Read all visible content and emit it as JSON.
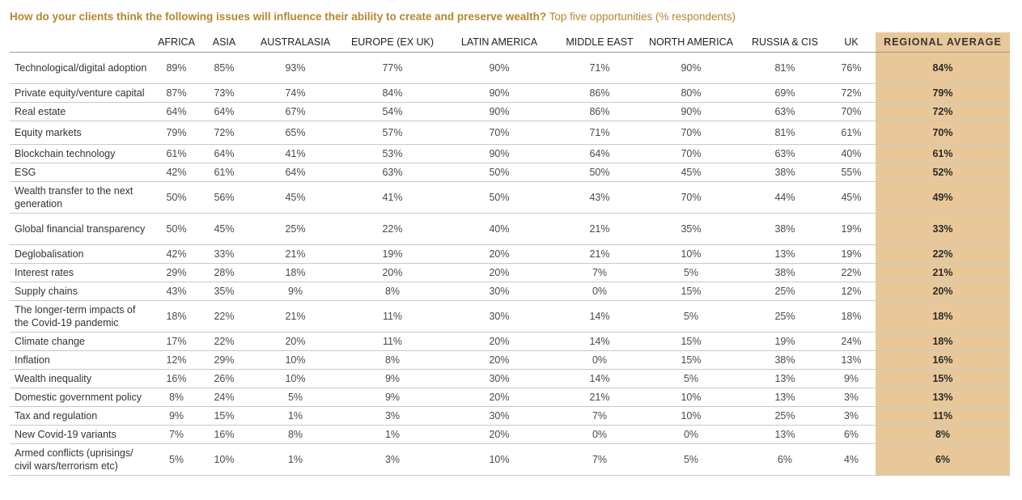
{
  "title": {
    "question": "How do your clients think the following issues will influence their ability to create and preserve wealth?",
    "subtitle": "Top five opportunities (% respondents)"
  },
  "chart_data": {
    "type": "table",
    "columns": [
      "AFRICA",
      "ASIA",
      "AUSTRALASIA",
      "EUROPE (EX UK)",
      "LATIN AMERICA",
      "MIDDLE EAST",
      "NORTH AMERICA",
      "RUSSIA & CIS",
      "UK",
      "REGIONAL AVERAGE"
    ],
    "highlight_color": "#e8c899",
    "rows": [
      {
        "label": "Technological/digital adoption",
        "values": [
          "89%",
          "85%",
          "93%",
          "77%",
          "90%",
          "71%",
          "90%",
          "81%",
          "76%",
          "84%"
        ]
      },
      {
        "label": "Private equity/venture capital",
        "values": [
          "87%",
          "73%",
          "74%",
          "84%",
          "90%",
          "86%",
          "80%",
          "69%",
          "72%",
          "79%"
        ]
      },
      {
        "label": "Real estate",
        "values": [
          "64%",
          "64%",
          "67%",
          "54%",
          "90%",
          "86%",
          "90%",
          "63%",
          "70%",
          "72%"
        ]
      },
      {
        "label": "Equity markets",
        "values": [
          "79%",
          "72%",
          "65%",
          "57%",
          "70%",
          "71%",
          "70%",
          "81%",
          "61%",
          "70%"
        ]
      },
      {
        "label": "Blockchain technology",
        "values": [
          "61%",
          "64%",
          "41%",
          "53%",
          "90%",
          "64%",
          "70%",
          "63%",
          "40%",
          "61%"
        ]
      },
      {
        "label": "ESG",
        "values": [
          "42%",
          "61%",
          "64%",
          "63%",
          "50%",
          "50%",
          "45%",
          "38%",
          "55%",
          "52%"
        ]
      },
      {
        "label": "Wealth transfer to the next generation",
        "values": [
          "50%",
          "56%",
          "45%",
          "41%",
          "50%",
          "43%",
          "70%",
          "44%",
          "45%",
          "49%"
        ]
      },
      {
        "label": "Global financial transparency",
        "values": [
          "50%",
          "45%",
          "25%",
          "22%",
          "40%",
          "21%",
          "35%",
          "38%",
          "19%",
          "33%"
        ]
      },
      {
        "label": "Deglobalisation",
        "values": [
          "42%",
          "33%",
          "21%",
          "19%",
          "20%",
          "21%",
          "10%",
          "13%",
          "19%",
          "22%"
        ]
      },
      {
        "label": "Interest rates",
        "values": [
          "29%",
          "28%",
          "18%",
          "20%",
          "20%",
          "7%",
          "5%",
          "38%",
          "22%",
          "21%"
        ]
      },
      {
        "label": "Supply chains",
        "values": [
          "43%",
          "35%",
          "9%",
          "8%",
          "30%",
          "0%",
          "15%",
          "25%",
          "12%",
          "20%"
        ]
      },
      {
        "label": "The longer-term impacts of the Covid-19 pandemic",
        "values": [
          "18%",
          "22%",
          "21%",
          "11%",
          "30%",
          "14%",
          "5%",
          "25%",
          "18%",
          "18%"
        ]
      },
      {
        "label": "Climate change",
        "values": [
          "17%",
          "22%",
          "20%",
          "11%",
          "20%",
          "14%",
          "15%",
          "19%",
          "24%",
          "18%"
        ]
      },
      {
        "label": "Inflation",
        "values": [
          "12%",
          "29%",
          "10%",
          "8%",
          "20%",
          "0%",
          "15%",
          "38%",
          "13%",
          "16%"
        ]
      },
      {
        "label": "Wealth inequality",
        "values": [
          "16%",
          "26%",
          "10%",
          "9%",
          "30%",
          "14%",
          "5%",
          "13%",
          "9%",
          "15%"
        ]
      },
      {
        "label": "Domestic government policy",
        "values": [
          "8%",
          "24%",
          "5%",
          "9%",
          "20%",
          "21%",
          "10%",
          "13%",
          "3%",
          "13%"
        ]
      },
      {
        "label": "Tax and regulation",
        "values": [
          "9%",
          "15%",
          "1%",
          "3%",
          "30%",
          "7%",
          "10%",
          "25%",
          "3%",
          "11%"
        ]
      },
      {
        "label": "New Covid-19 variants",
        "values": [
          "7%",
          "16%",
          "8%",
          "1%",
          "20%",
          "0%",
          "0%",
          "13%",
          "6%",
          "8%"
        ]
      },
      {
        "label": "Armed conflicts (uprisings/ civil wars/terrorism etc)",
        "values": [
          "5%",
          "10%",
          "1%",
          "3%",
          "10%",
          "7%",
          "5%",
          "6%",
          "4%",
          "6%"
        ]
      }
    ]
  }
}
